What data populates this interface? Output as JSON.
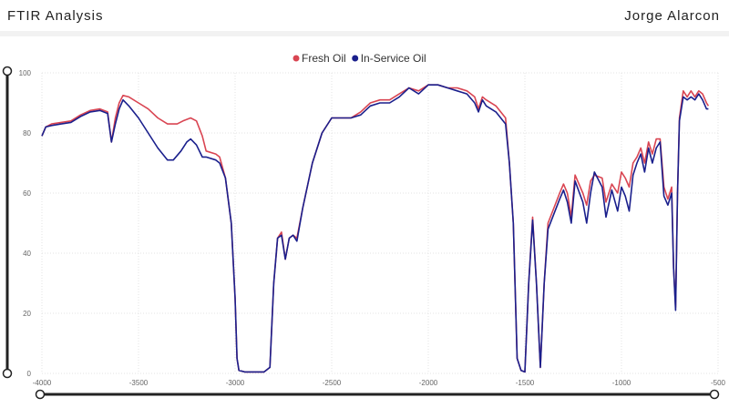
{
  "header": {
    "title": "FTIR Analysis",
    "author": "Jorge Alarcon"
  },
  "colors": {
    "fresh_oil": "#d94552",
    "in_service_oil": "#1a1f8c",
    "grid": "#e3e3e3",
    "axis_text": "#666666",
    "slider": "#222222"
  },
  "chart_data": {
    "type": "line",
    "xlabel": "",
    "ylabel": "",
    "xlim": [
      -4000,
      -500
    ],
    "ylim": [
      0,
      100
    ],
    "x_ticks": [
      -4000,
      -3500,
      -3000,
      -2500,
      -2000,
      -1500,
      -1000,
      -500
    ],
    "y_ticks": [
      0,
      20,
      40,
      60,
      80,
      100
    ],
    "grid": true,
    "legend_position": "top-center",
    "series": [
      {
        "name": "Fresh Oil",
        "color": "#d94552",
        "points": [
          [
            -4000,
            79
          ],
          [
            -3980,
            82
          ],
          [
            -3950,
            83
          ],
          [
            -3900,
            83.5
          ],
          [
            -3850,
            84
          ],
          [
            -3800,
            86
          ],
          [
            -3750,
            87.5
          ],
          [
            -3700,
            88
          ],
          [
            -3660,
            87
          ],
          [
            -3640,
            77
          ],
          [
            -3620,
            85
          ],
          [
            -3600,
            90
          ],
          [
            -3580,
            92.5
          ],
          [
            -3550,
            92
          ],
          [
            -3500,
            90
          ],
          [
            -3450,
            88
          ],
          [
            -3400,
            85
          ],
          [
            -3350,
            83
          ],
          [
            -3300,
            83
          ],
          [
            -3270,
            84
          ],
          [
            -3230,
            85
          ],
          [
            -3200,
            84
          ],
          [
            -3170,
            79
          ],
          [
            -3150,
            74
          ],
          [
            -3100,
            73
          ],
          [
            -3080,
            72
          ],
          [
            -3050,
            65
          ],
          [
            -3020,
            50
          ],
          [
            -3000,
            25
          ],
          [
            -2990,
            5
          ],
          [
            -2980,
            1
          ],
          [
            -2950,
            0.5
          ],
          [
            -2850,
            0.5
          ],
          [
            -2820,
            2
          ],
          [
            -2800,
            30
          ],
          [
            -2780,
            45
          ],
          [
            -2760,
            47
          ],
          [
            -2740,
            38
          ],
          [
            -2720,
            45
          ],
          [
            -2700,
            46
          ],
          [
            -2680,
            45
          ],
          [
            -2650,
            55
          ],
          [
            -2600,
            70
          ],
          [
            -2550,
            80
          ],
          [
            -2500,
            85
          ],
          [
            -2450,
            85
          ],
          [
            -2400,
            85
          ],
          [
            -2350,
            87
          ],
          [
            -2300,
            90
          ],
          [
            -2250,
            91
          ],
          [
            -2200,
            91
          ],
          [
            -2150,
            93
          ],
          [
            -2100,
            95
          ],
          [
            -2050,
            94
          ],
          [
            -2000,
            96
          ],
          [
            -1950,
            96
          ],
          [
            -1900,
            95
          ],
          [
            -1850,
            95
          ],
          [
            -1800,
            94
          ],
          [
            -1760,
            92
          ],
          [
            -1740,
            88
          ],
          [
            -1720,
            92
          ],
          [
            -1700,
            91
          ],
          [
            -1650,
            89
          ],
          [
            -1600,
            85
          ],
          [
            -1580,
            70
          ],
          [
            -1560,
            50
          ],
          [
            -1540,
            5
          ],
          [
            -1520,
            1
          ],
          [
            -1500,
            0.5
          ],
          [
            -1480,
            30
          ],
          [
            -1460,
            52
          ],
          [
            -1440,
            30
          ],
          [
            -1420,
            2
          ],
          [
            -1400,
            30
          ],
          [
            -1380,
            50
          ],
          [
            -1350,
            55
          ],
          [
            -1320,
            60
          ],
          [
            -1300,
            63
          ],
          [
            -1280,
            60
          ],
          [
            -1260,
            52
          ],
          [
            -1240,
            66
          ],
          [
            -1200,
            60
          ],
          [
            -1180,
            56
          ],
          [
            -1160,
            64
          ],
          [
            -1140,
            66
          ],
          [
            -1100,
            65
          ],
          [
            -1080,
            57
          ],
          [
            -1050,
            63
          ],
          [
            -1020,
            60
          ],
          [
            -1000,
            67
          ],
          [
            -980,
            65
          ],
          [
            -960,
            62
          ],
          [
            -940,
            70
          ],
          [
            -920,
            72
          ],
          [
            -900,
            75
          ],
          [
            -880,
            70
          ],
          [
            -860,
            77
          ],
          [
            -840,
            73
          ],
          [
            -820,
            78
          ],
          [
            -800,
            78
          ],
          [
            -780,
            62
          ],
          [
            -760,
            58
          ],
          [
            -740,
            62
          ],
          [
            -730,
            35
          ],
          [
            -720,
            22
          ],
          [
            -710,
            60
          ],
          [
            -700,
            85
          ],
          [
            -680,
            94
          ],
          [
            -660,
            92
          ],
          [
            -640,
            94
          ],
          [
            -620,
            92
          ],
          [
            -600,
            94
          ],
          [
            -580,
            93
          ],
          [
            -560,
            90
          ],
          [
            -550,
            89
          ]
        ]
      },
      {
        "name": "In-Service Oil",
        "color": "#1a1f8c",
        "points": [
          [
            -4000,
            79
          ],
          [
            -3980,
            82
          ],
          [
            -3950,
            82.5
          ],
          [
            -3900,
            83
          ],
          [
            -3850,
            83.5
          ],
          [
            -3800,
            85.5
          ],
          [
            -3750,
            87
          ],
          [
            -3700,
            87.5
          ],
          [
            -3660,
            86.5
          ],
          [
            -3640,
            77
          ],
          [
            -3620,
            83
          ],
          [
            -3600,
            88
          ],
          [
            -3580,
            91
          ],
          [
            -3550,
            89
          ],
          [
            -3500,
            85
          ],
          [
            -3450,
            80
          ],
          [
            -3400,
            75
          ],
          [
            -3350,
            71
          ],
          [
            -3320,
            71
          ],
          [
            -3280,
            74
          ],
          [
            -3250,
            77
          ],
          [
            -3230,
            78
          ],
          [
            -3200,
            76
          ],
          [
            -3170,
            72
          ],
          [
            -3150,
            72
          ],
          [
            -3100,
            71
          ],
          [
            -3080,
            70
          ],
          [
            -3050,
            65
          ],
          [
            -3020,
            50
          ],
          [
            -3000,
            25
          ],
          [
            -2990,
            5
          ],
          [
            -2980,
            1
          ],
          [
            -2950,
            0.5
          ],
          [
            -2850,
            0.5
          ],
          [
            -2820,
            2
          ],
          [
            -2800,
            30
          ],
          [
            -2780,
            45
          ],
          [
            -2760,
            46
          ],
          [
            -2740,
            38
          ],
          [
            -2720,
            45
          ],
          [
            -2700,
            46
          ],
          [
            -2680,
            44
          ],
          [
            -2650,
            55
          ],
          [
            -2600,
            70
          ],
          [
            -2550,
            80
          ],
          [
            -2500,
            85
          ],
          [
            -2450,
            85
          ],
          [
            -2400,
            85
          ],
          [
            -2350,
            86
          ],
          [
            -2300,
            89
          ],
          [
            -2250,
            90
          ],
          [
            -2200,
            90
          ],
          [
            -2150,
            92
          ],
          [
            -2100,
            95
          ],
          [
            -2050,
            93
          ],
          [
            -2000,
            96
          ],
          [
            -1950,
            96
          ],
          [
            -1900,
            95
          ],
          [
            -1850,
            94
          ],
          [
            -1800,
            93
          ],
          [
            -1760,
            90
          ],
          [
            -1740,
            87
          ],
          [
            -1720,
            91
          ],
          [
            -1700,
            89
          ],
          [
            -1650,
            87
          ],
          [
            -1600,
            83
          ],
          [
            -1580,
            70
          ],
          [
            -1560,
            50
          ],
          [
            -1540,
            5
          ],
          [
            -1520,
            1
          ],
          [
            -1500,
            0.5
          ],
          [
            -1480,
            30
          ],
          [
            -1460,
            51
          ],
          [
            -1440,
            30
          ],
          [
            -1420,
            2
          ],
          [
            -1400,
            30
          ],
          [
            -1380,
            48
          ],
          [
            -1350,
            53
          ],
          [
            -1320,
            58
          ],
          [
            -1300,
            61
          ],
          [
            -1280,
            57
          ],
          [
            -1260,
            50
          ],
          [
            -1240,
            64
          ],
          [
            -1200,
            57
          ],
          [
            -1180,
            50
          ],
          [
            -1160,
            60
          ],
          [
            -1140,
            67
          ],
          [
            -1100,
            62
          ],
          [
            -1080,
            52
          ],
          [
            -1050,
            61
          ],
          [
            -1020,
            54
          ],
          [
            -1000,
            62
          ],
          [
            -980,
            59
          ],
          [
            -960,
            54
          ],
          [
            -940,
            66
          ],
          [
            -920,
            70
          ],
          [
            -900,
            73
          ],
          [
            -880,
            67
          ],
          [
            -860,
            75
          ],
          [
            -840,
            70
          ],
          [
            -820,
            75
          ],
          [
            -800,
            77
          ],
          [
            -780,
            59
          ],
          [
            -760,
            56
          ],
          [
            -740,
            60
          ],
          [
            -730,
            35
          ],
          [
            -720,
            21
          ],
          [
            -710,
            60
          ],
          [
            -700,
            84
          ],
          [
            -680,
            92
          ],
          [
            -660,
            91
          ],
          [
            -640,
            92
          ],
          [
            -620,
            91
          ],
          [
            -600,
            93
          ],
          [
            -580,
            91
          ],
          [
            -560,
            88
          ],
          [
            -550,
            88
          ]
        ]
      }
    ]
  }
}
